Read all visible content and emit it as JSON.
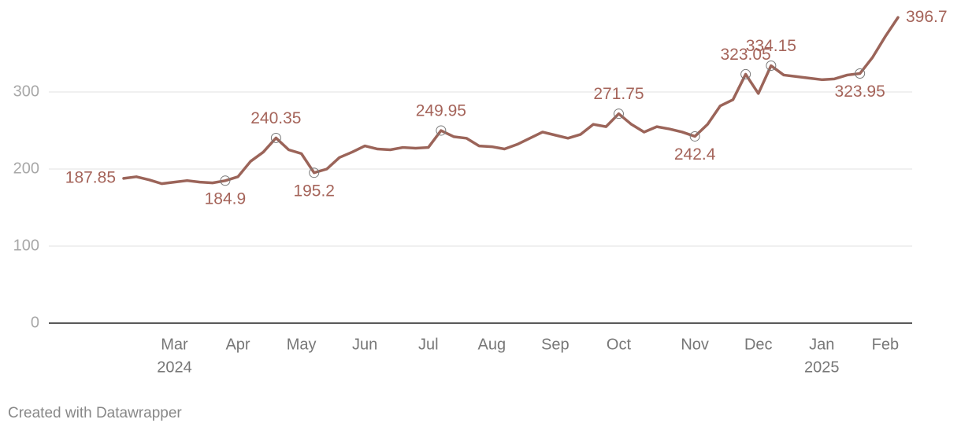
{
  "chart_data": {
    "type": "line",
    "categories": [
      null,
      null,
      null,
      null,
      "Mar",
      null,
      null,
      null,
      null,
      "Apr",
      null,
      null,
      null,
      null,
      "May",
      null,
      null,
      null,
      null,
      "Jun",
      null,
      null,
      null,
      null,
      "Jul",
      null,
      null,
      null,
      null,
      "Aug",
      null,
      null,
      null,
      null,
      "Sep",
      null,
      null,
      null,
      null,
      "Oct",
      null,
      null,
      null,
      null,
      null,
      "Nov",
      null,
      null,
      null,
      null,
      "Dec",
      null,
      null,
      null,
      null,
      "Jan",
      null,
      null,
      null,
      null,
      "Feb",
      null
    ],
    "x_sublabels": [
      null,
      null,
      null,
      null,
      "2024",
      null,
      null,
      null,
      null,
      null,
      null,
      null,
      null,
      null,
      null,
      null,
      null,
      null,
      null,
      null,
      null,
      null,
      null,
      null,
      null,
      null,
      null,
      null,
      null,
      null,
      null,
      null,
      null,
      null,
      null,
      null,
      null,
      null,
      null,
      null,
      null,
      null,
      null,
      null,
      null,
      null,
      null,
      null,
      null,
      null,
      null,
      null,
      null,
      null,
      null,
      "2025",
      null,
      null,
      null,
      null,
      null,
      null
    ],
    "series": [
      {
        "color": "#9b6459",
        "values": [
          187.85,
          190,
          186,
          181,
          183,
          185,
          183,
          182,
          184.9,
          190,
          210,
          222,
          240.35,
          225,
          220,
          195.2,
          200,
          215,
          222,
          230,
          226,
          225,
          228,
          227,
          228,
          249.95,
          242,
          240,
          230,
          229,
          226,
          232,
          240,
          248,
          244,
          240,
          245,
          258,
          255,
          271.75,
          258,
          248,
          255,
          252,
          248,
          242.4,
          258,
          282,
          290,
          323.05,
          298,
          334.15,
          322,
          320,
          318,
          316,
          317,
          322,
          323.95,
          345,
          372,
          396.7
        ],
        "value_labels": [
          "187.85",
          null,
          null,
          null,
          null,
          null,
          null,
          null,
          "184.9",
          null,
          null,
          null,
          "240.35",
          null,
          null,
          "195.2",
          null,
          null,
          null,
          null,
          null,
          null,
          null,
          null,
          null,
          "249.95",
          null,
          null,
          null,
          null,
          null,
          null,
          null,
          null,
          null,
          null,
          null,
          null,
          null,
          "271.75",
          null,
          null,
          null,
          null,
          null,
          "242.4",
          null,
          null,
          null,
          "323.05",
          null,
          "334.15",
          null,
          null,
          null,
          null,
          null,
          null,
          "323.95",
          null,
          null,
          "396.7"
        ]
      }
    ],
    "ylim": [
      0,
      400
    ],
    "yticks": [
      0,
      100,
      200,
      300
    ],
    "grid": true,
    "footer": "Created with Datawrapper"
  }
}
